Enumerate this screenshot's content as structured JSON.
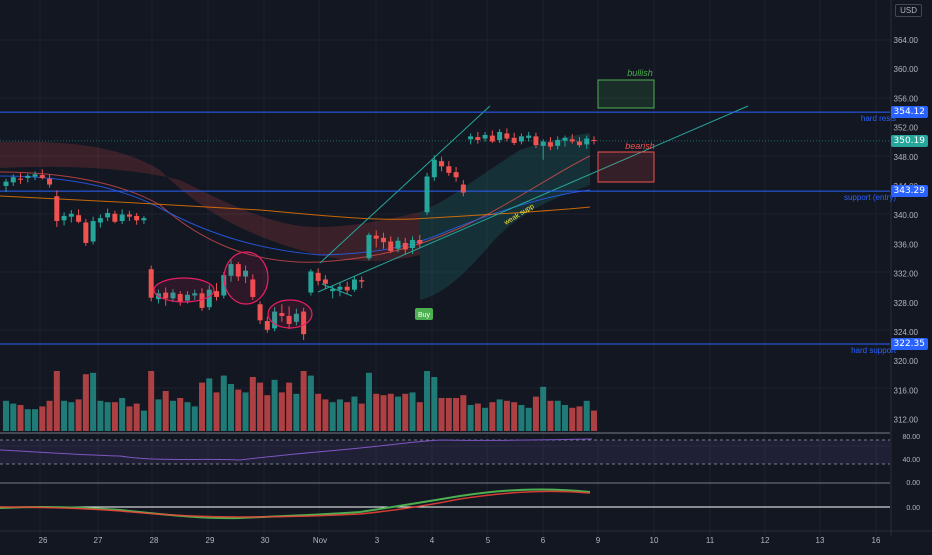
{
  "currency": "USD",
  "colors": {
    "bg": "#131722",
    "up": "#26a69a",
    "down": "#ef5350",
    "line": "#2962ff",
    "grid": "#1e222d"
  },
  "price_axis": {
    "ticks": [
      364,
      360,
      356,
      352,
      348,
      344,
      340,
      336,
      332,
      328,
      324,
      320,
      316,
      312
    ]
  },
  "price_tags": [
    {
      "value": "354.12",
      "kind": "line"
    },
    {
      "value": "350.19",
      "kind": "last"
    },
    {
      "value": "343.29",
      "kind": "line"
    },
    {
      "value": "322.35",
      "kind": "line"
    }
  ],
  "levels": [
    {
      "price": 354.12,
      "label": "hard resis"
    },
    {
      "price": 343.29,
      "label": "support (entry)"
    },
    {
      "price": 322.35,
      "label": "hard support"
    }
  ],
  "annotations": {
    "bullish": "bullish",
    "bearish": "bearish",
    "weak_supp": "weak supp",
    "buy": "Buy"
  },
  "time_axis": [
    "26",
    "27",
    "28",
    "29",
    "30",
    "Nov",
    "3",
    "4",
    "5",
    "6",
    "9",
    "10",
    "11",
    "12",
    "13",
    "16"
  ],
  "rsi_ticks": [
    "80.00",
    "40.00"
  ],
  "macd_ticks": [
    "0.00",
    "0.00"
  ],
  "chart_data": {
    "type": "candlestick",
    "candles": [
      [
        344.0,
        345.0,
        343.2,
        344.6
      ],
      [
        344.5,
        345.6,
        344.0,
        345.2
      ],
      [
        345.0,
        345.8,
        344.3,
        344.9
      ],
      [
        345.1,
        345.7,
        344.5,
        345.4
      ],
      [
        345.3,
        346.0,
        344.8,
        345.6
      ],
      [
        345.5,
        346.3,
        344.9,
        345.1
      ],
      [
        345.0,
        345.6,
        343.8,
        344.2
      ],
      [
        342.6,
        343.4,
        338.4,
        339.2
      ],
      [
        339.3,
        340.4,
        338.6,
        339.9
      ],
      [
        339.8,
        340.7,
        339.0,
        340.2
      ],
      [
        340.0,
        340.8,
        338.9,
        339.1
      ],
      [
        339.0,
        339.5,
        335.8,
        336.2
      ],
      [
        336.4,
        339.8,
        336.0,
        339.2
      ],
      [
        339.0,
        340.1,
        338.3,
        339.6
      ],
      [
        339.7,
        340.9,
        339.2,
        340.3
      ],
      [
        340.2,
        340.6,
        338.9,
        339.1
      ],
      [
        339.2,
        340.8,
        338.8,
        340.1
      ],
      [
        340.1,
        340.6,
        339.2,
        339.8
      ],
      [
        339.9,
        340.3,
        338.7,
        339.3
      ],
      [
        339.3,
        339.9,
        338.8,
        339.6
      ],
      [
        332.6,
        333.1,
        328.2,
        328.7
      ],
      [
        328.5,
        329.8,
        327.9,
        329.3
      ],
      [
        329.4,
        330.1,
        327.6,
        328.6
      ],
      [
        328.6,
        329.9,
        328.1,
        329.4
      ],
      [
        329.2,
        329.6,
        327.6,
        328.1
      ],
      [
        328.3,
        329.6,
        327.9,
        329.1
      ],
      [
        329.0,
        329.8,
        328.4,
        329.3
      ],
      [
        329.3,
        330.0,
        326.9,
        327.3
      ],
      [
        327.4,
        330.4,
        327.0,
        329.8
      ],
      [
        329.6,
        330.7,
        328.3,
        328.8
      ],
      [
        329.0,
        332.2,
        328.6,
        331.8
      ],
      [
        331.7,
        333.9,
        330.9,
        333.3
      ],
      [
        333.3,
        333.6,
        331.0,
        331.6
      ],
      [
        331.6,
        333.1,
        330.7,
        332.4
      ],
      [
        331.2,
        331.9,
        328.4,
        328.8
      ],
      [
        327.8,
        328.2,
        325.1,
        325.6
      ],
      [
        325.5,
        326.1,
        323.9,
        324.3
      ],
      [
        324.5,
        327.4,
        324.1,
        326.8
      ],
      [
        326.6,
        327.8,
        325.4,
        326.2
      ],
      [
        326.2,
        327.5,
        324.4,
        325.1
      ],
      [
        325.4,
        327.2,
        324.9,
        326.5
      ],
      [
        326.8,
        327.3,
        322.9,
        323.7
      ],
      [
        329.4,
        332.6,
        329.0,
        332.3
      ],
      [
        332.1,
        332.7,
        330.4,
        331.0
      ],
      [
        331.2,
        331.8,
        329.9,
        330.6
      ],
      [
        329.6,
        330.3,
        328.6,
        329.9
      ],
      [
        329.8,
        330.8,
        328.9,
        330.2
      ],
      [
        330.2,
        330.9,
        329.2,
        329.7
      ],
      [
        329.8,
        331.6,
        329.5,
        331.2
      ],
      [
        331.1,
        331.6,
        330.0,
        330.9
      ],
      [
        334.1,
        337.6,
        333.8,
        337.3
      ],
      [
        337.2,
        337.9,
        335.6,
        336.8
      ],
      [
        336.9,
        337.6,
        335.4,
        336.3
      ],
      [
        336.4,
        337.1,
        334.8,
        335.1
      ],
      [
        335.4,
        337.0,
        334.9,
        336.5
      ],
      [
        336.2,
        336.9,
        334.6,
        335.3
      ],
      [
        335.5,
        337.1,
        334.7,
        336.6
      ],
      [
        336.6,
        337.3,
        335.6,
        336.1
      ],
      [
        340.4,
        345.8,
        340.0,
        345.3
      ],
      [
        345.2,
        348.2,
        344.7,
        347.6
      ],
      [
        347.4,
        348.0,
        346.0,
        346.7
      ],
      [
        346.7,
        347.4,
        345.4,
        345.8
      ],
      [
        345.9,
        346.6,
        344.6,
        345.2
      ],
      [
        344.2,
        344.8,
        342.6,
        343.1
      ],
      [
        350.4,
        351.2,
        349.7,
        350.8
      ],
      [
        350.7,
        351.4,
        349.8,
        350.3
      ],
      [
        350.5,
        351.4,
        350.1,
        351.0
      ],
      [
        350.9,
        351.6,
        349.9,
        350.1
      ],
      [
        350.3,
        351.8,
        349.9,
        351.4
      ],
      [
        351.2,
        351.9,
        350.1,
        350.5
      ],
      [
        350.6,
        351.3,
        349.6,
        349.9
      ],
      [
        350.1,
        351.2,
        349.7,
        350.8
      ],
      [
        350.6,
        351.4,
        350.1,
        350.9
      ],
      [
        350.8,
        351.3,
        349.2,
        349.6
      ],
      [
        349.5,
        350.4,
        347.6,
        350.1
      ],
      [
        350.0,
        350.7,
        348.9,
        349.4
      ],
      [
        349.5,
        350.8,
        349.0,
        350.3
      ],
      [
        350.2,
        350.9,
        349.4,
        350.6
      ],
      [
        350.4,
        351.1,
        349.8,
        350.1
      ],
      [
        350.1,
        350.7,
        349.3,
        349.6
      ],
      [
        349.7,
        350.9,
        349.1,
        350.5
      ],
      [
        350.3,
        350.8,
        349.7,
        350.2
      ]
    ]
  }
}
